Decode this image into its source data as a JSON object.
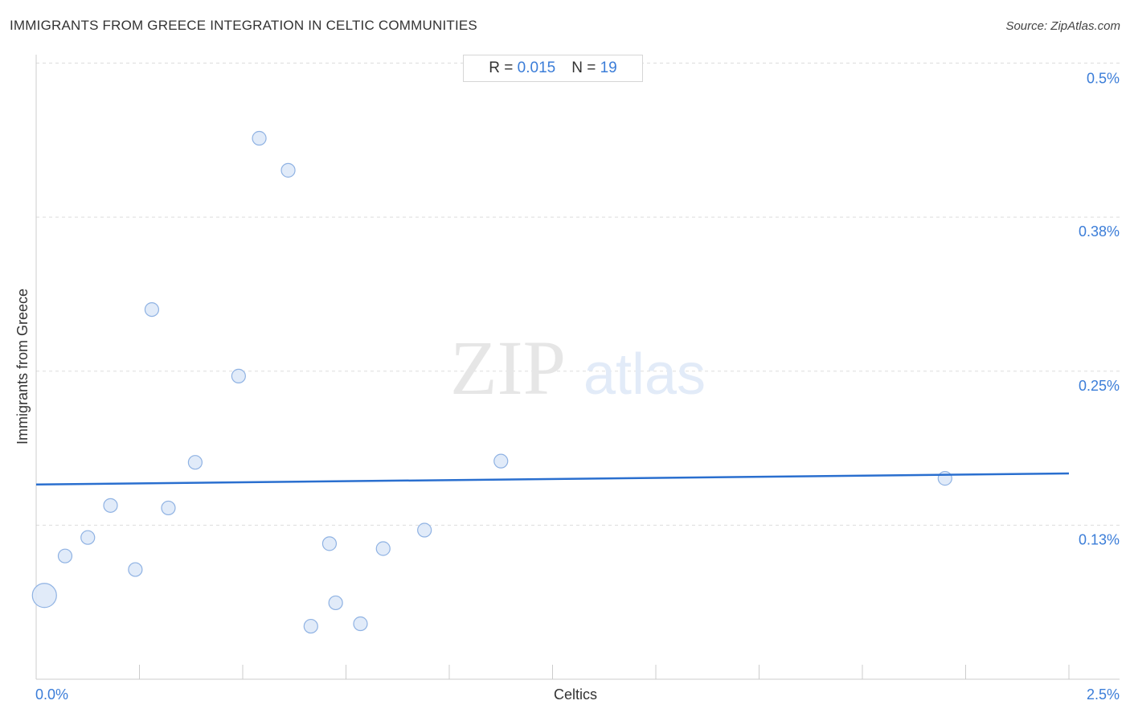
{
  "header": {
    "title": "IMMIGRANTS FROM GREECE INTEGRATION IN CELTIC COMMUNITIES",
    "source": "Source: ZipAtlas.com"
  },
  "stats": {
    "r_label": "R = ",
    "r_value": "0.015",
    "n_label": "N = ",
    "n_value": "19"
  },
  "watermark": {
    "zip": "ZIP",
    "atlas": "atlas"
  },
  "colors": {
    "accent": "#3b7dd8",
    "point_fill": "#dce8f8",
    "point_stroke": "#8fb2e3",
    "trend": "#2a6fcf",
    "grid": "#dddddd"
  },
  "chart_data": {
    "type": "scatter",
    "title": "IMMIGRANTS FROM GREECE INTEGRATION IN CELTIC COMMUNITIES",
    "xlabel": "Celtics",
    "ylabel": "Immigrants from Greece",
    "xlim": [
      0,
      2.5
    ],
    "ylim": [
      0.0,
      0.5
    ],
    "x_tick_labels": [
      {
        "value": 0,
        "label": "0.0%"
      },
      {
        "value": 2.5,
        "label": "2.5%"
      }
    ],
    "y_tick_labels": [
      {
        "value": 0.5,
        "label": "0.5%"
      },
      {
        "value": 0.375,
        "label": "0.38%"
      },
      {
        "value": 0.25,
        "label": "0.25%"
      },
      {
        "value": 0.125,
        "label": "0.13%"
      }
    ],
    "grid": true,
    "trend_line": {
      "x": [
        0,
        2.5
      ],
      "y": [
        0.158,
        0.167
      ]
    },
    "points": [
      {
        "x": 0.02,
        "y": 0.068,
        "size": 3
      },
      {
        "x": 0.07,
        "y": 0.1,
        "size": 1
      },
      {
        "x": 0.125,
        "y": 0.115,
        "size": 1
      },
      {
        "x": 0.18,
        "y": 0.141,
        "size": 1
      },
      {
        "x": 0.24,
        "y": 0.089,
        "size": 1
      },
      {
        "x": 0.28,
        "y": 0.3,
        "size": 1
      },
      {
        "x": 0.32,
        "y": 0.139,
        "size": 1
      },
      {
        "x": 0.385,
        "y": 0.176,
        "size": 1
      },
      {
        "x": 0.49,
        "y": 0.246,
        "size": 1
      },
      {
        "x": 0.54,
        "y": 0.439,
        "size": 1
      },
      {
        "x": 0.61,
        "y": 0.413,
        "size": 1
      },
      {
        "x": 0.665,
        "y": 0.043,
        "size": 1
      },
      {
        "x": 0.71,
        "y": 0.11,
        "size": 1
      },
      {
        "x": 0.725,
        "y": 0.062,
        "size": 1
      },
      {
        "x": 0.785,
        "y": 0.045,
        "size": 1
      },
      {
        "x": 0.84,
        "y": 0.106,
        "size": 1
      },
      {
        "x": 0.94,
        "y": 0.121,
        "size": 1
      },
      {
        "x": 1.125,
        "y": 0.177,
        "size": 1
      },
      {
        "x": 2.2,
        "y": 0.163,
        "size": 1
      }
    ]
  }
}
